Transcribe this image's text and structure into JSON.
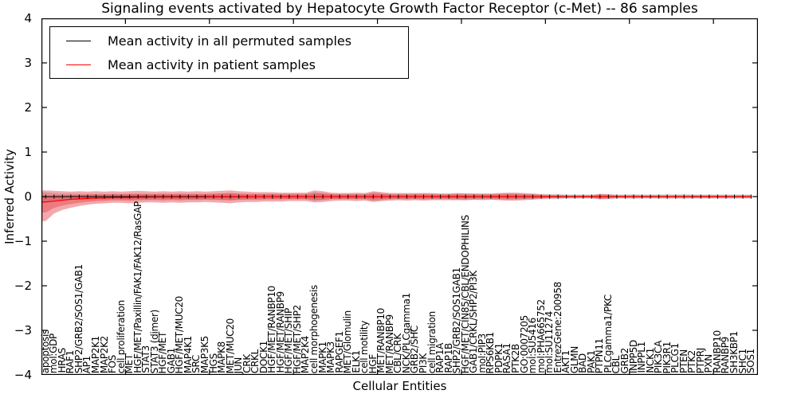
{
  "title": "Signaling events activated by Hepatocyte Growth Factor Receptor (c-Met) -- 86 samples",
  "axes": {
    "ylabel": "Inferred Activity",
    "xlabel": "Cellular Entities",
    "y_ticks": [
      {
        "value": 4,
        "label": "4"
      },
      {
        "value": 3,
        "label": "3"
      },
      {
        "value": 2,
        "label": "2"
      },
      {
        "value": 1,
        "label": "1"
      },
      {
        "value": 0,
        "label": "0"
      },
      {
        "value": -1,
        "label": "−1"
      },
      {
        "value": -2,
        "label": "−2"
      },
      {
        "value": -3,
        "label": "−3"
      },
      {
        "value": -4,
        "label": "−4"
      }
    ]
  },
  "legend": {
    "items": [
      {
        "label": "Mean activity in all permuted samples",
        "color": "#000000"
      },
      {
        "label": "Mean activity in patient samples",
        "color": "#ff0000"
      }
    ]
  },
  "colors": {
    "permuted_line": "#000000",
    "patient_line": "#ff0000",
    "patient_band": "#e02830",
    "permuted_band": "#000000",
    "background": "#ffffff"
  },
  "chart_data": {
    "type": "line",
    "title": "Signaling events activated by Hepatocyte Growth Factor Receptor (c-Met) -- 86 samples",
    "xlabel": "Cellular Entities",
    "ylabel": "Inferred Activity",
    "xlim": [
      0,
      85.3
    ],
    "ylim": [
      -4,
      4
    ],
    "grid": false,
    "legend_position": "upper left",
    "x_major_ticks": [
      10,
      20,
      30,
      40,
      50,
      60,
      70,
      80
    ],
    "n_entities": 85,
    "categories": [
      "apoptosis",
      "mol:GDP",
      "HRAS",
      "RAF1",
      "SHP2/GRB2/SOS1/GAB1",
      "AP1",
      "MAP2K1",
      "MAP2K2",
      "FOS",
      "cell proliferation",
      "MET",
      "HGF/MET/Paxillin/FAK1/FAK12/RasGAP",
      "STAT3",
      "STAT3 (dimer)",
      "HGF/MET",
      "GAB1",
      "HGF/MET/MUC20",
      "MAP4K1",
      "SRC",
      "MAP3K5",
      "HGS",
      "MAPK8",
      "MET/MUC20",
      "JUN",
      "CRK",
      "CRKL",
      "DOCK1",
      "HGF/MET/RANBP10",
      "HGF/MET/RANBP9",
      "HGF/MET/SHIP",
      "HGF/MET/SHP2",
      "MAP2K4",
      "cell morphogenesis",
      "MAPK1",
      "MAPK3",
      "RAPGEF1",
      "MET/Glomulin",
      "ELK1",
      "cell motility",
      "HGF",
      "MET/RANBP10",
      "MET/RANBP9",
      "CBL/CRK",
      "NCK/PLCgamma1",
      "GRB2/SHC",
      "PI3K",
      "cell migration",
      "RAP1A",
      "RAP1B",
      "SHP2/GRB2/SOS1GAB1",
      "HGF/MET/CIN85/CBL/ENDOPHILINS",
      "GAB1/CRKL/SHP2/PI3K",
      "mol:PIP3",
      "RPS6KB1",
      "PDPK1",
      "RASA1",
      "PTK2B",
      "GO:0007205",
      "mol:SU5416",
      "mol:PHA665752",
      "mol:SU11274",
      "EntrezGene:200958",
      "AKT1",
      "GLMN",
      "BAD",
      "PAK1",
      "PTPN11",
      "PLCgamma1/PKC",
      "CBL",
      "GRB2",
      "INPP5D",
      "INPPL1",
      "NCK1",
      "PIK3CA",
      "PIK3R1",
      "PLCG1",
      "PTEN",
      "PTK2",
      "PTPRJ",
      "PXN",
      "RANBP10",
      "RANBP9",
      "SH3KBP1",
      "SHC1",
      "SOS1"
    ],
    "series": [
      {
        "name": "Mean activity in all permuted samples",
        "color": "#000000",
        "marker": "|",
        "values": [
          0,
          0,
          0,
          0,
          0,
          0,
          0,
          0,
          0,
          0,
          0,
          0,
          0,
          0,
          0,
          0,
          0,
          0,
          0,
          0,
          0,
          0,
          0,
          0,
          0,
          0,
          0,
          0,
          0,
          0,
          0,
          0,
          0,
          0,
          0,
          0,
          0,
          0,
          0,
          0,
          0,
          0,
          0,
          0,
          0,
          0,
          0,
          0,
          0,
          0,
          0,
          0,
          0,
          0,
          0,
          0,
          0,
          0,
          0,
          0,
          0,
          0,
          0,
          0,
          0,
          0,
          0,
          0,
          0,
          0,
          0,
          0,
          0,
          0,
          0,
          0,
          0,
          0,
          0,
          0,
          0,
          0,
          0,
          0,
          0
        ]
      },
      {
        "name": "Mean activity in patient samples",
        "color": "#ff0000",
        "marker": "none",
        "values": [
          -0.12,
          -0.1,
          -0.08,
          -0.06,
          -0.05,
          -0.04,
          -0.03,
          -0.03,
          -0.02,
          -0.02,
          -0.02,
          -0.015,
          -0.015,
          -0.01,
          -0.01,
          -0.01,
          -0.01,
          -0.01,
          -0.01,
          -0.01,
          -0.005,
          -0.005,
          -0.005,
          -0.005,
          -0.005,
          0,
          0,
          0,
          0,
          0,
          0,
          0,
          -0.005,
          0,
          0,
          0,
          0,
          0,
          0,
          -0.005,
          0,
          0,
          0,
          0,
          0,
          0,
          0,
          0,
          0,
          0,
          -0.005,
          0,
          0,
          0,
          0,
          0,
          0,
          0,
          0,
          0,
          0,
          0,
          0,
          0,
          0,
          0,
          0,
          0,
          0,
          0,
          0,
          0,
          0,
          0,
          0,
          0,
          0,
          0,
          0,
          0,
          0,
          0,
          0,
          0,
          0
        ]
      }
    ],
    "bands": [
      {
        "name": "permuted-samples-range",
        "color": "#000000",
        "opacity": 0.14,
        "symmetric_halfwidth": [
          0.1,
          0.08,
          0.07,
          0.07,
          0.06,
          0.06,
          0.06,
          0.06,
          0.06,
          0.06,
          0.07,
          0.06,
          0.06,
          0.06,
          0.06,
          0.06,
          0.06,
          0.06,
          0.06,
          0.06,
          0.06,
          0.07,
          0.08,
          0.06,
          0.06,
          0.06,
          0.06,
          0.06,
          0.06,
          0.06,
          0.06,
          0.06,
          0.1,
          0.08,
          0.06,
          0.06,
          0.06,
          0.06,
          0.06,
          0.1,
          0.08,
          0.06,
          0.06,
          0.06,
          0.06,
          0.07,
          0.06,
          0.06,
          0.06,
          0.07,
          0.08,
          0.07,
          0.06,
          0.06,
          0.07,
          0.07,
          0.07,
          0.06,
          0.06,
          0.06,
          0.06,
          0.06,
          0.05,
          0.05,
          0.05,
          0.05,
          0.06,
          0.06,
          0.05,
          0.05,
          0.06,
          0.05,
          0.05,
          0.05,
          0.06,
          0.05,
          0.06,
          0.05,
          0.05,
          0.05,
          0.05,
          0.05,
          0.05,
          0.05,
          0.05
        ]
      },
      {
        "name": "patient-samples-range-outer",
        "color": "#e02830",
        "opacity": 0.4,
        "upper": [
          0.14,
          0.13,
          0.12,
          0.11,
          0.12,
          0.11,
          0.12,
          0.11,
          0.12,
          0.11,
          0.12,
          0.13,
          0.12,
          0.11,
          0.12,
          0.11,
          0.12,
          0.11,
          0.12,
          0.11,
          0.12,
          0.13,
          0.14,
          0.12,
          0.11,
          0.1,
          0.1,
          0.1,
          0.09,
          0.09,
          0.09,
          0.09,
          0.14,
          0.12,
          0.09,
          0.08,
          0.08,
          0.09,
          0.08,
          0.12,
          0.1,
          0.08,
          0.08,
          0.08,
          0.08,
          0.08,
          0.08,
          0.07,
          0.07,
          0.08,
          0.07,
          0.07,
          0.07,
          0.07,
          0.08,
          0.09,
          0.09,
          0.08,
          0.07,
          0.05,
          0.04,
          0.04,
          0.03,
          0.03,
          0.03,
          0.03,
          0.06,
          0.05,
          0.03,
          0.03,
          0.03,
          0.03,
          0.03,
          0.03,
          0.03,
          0.03,
          0.03,
          0.03,
          0.03,
          0.03,
          0.03,
          0.03,
          0.03,
          0.03,
          0.03
        ],
        "lower": [
          -0.55,
          -0.38,
          -0.3,
          -0.25,
          -0.21,
          -0.18,
          -0.16,
          -0.15,
          -0.14,
          -0.14,
          -0.15,
          -0.14,
          -0.13,
          -0.13,
          -0.14,
          -0.13,
          -0.14,
          -0.13,
          -0.13,
          -0.12,
          -0.13,
          -0.14,
          -0.15,
          -0.13,
          -0.12,
          -0.12,
          -0.11,
          -0.11,
          -0.11,
          -0.1,
          -0.1,
          -0.1,
          -0.13,
          -0.12,
          -0.1,
          -0.09,
          -0.09,
          -0.1,
          -0.09,
          -0.12,
          -0.1,
          -0.09,
          -0.08,
          -0.09,
          -0.08,
          -0.09,
          -0.08,
          -0.08,
          -0.08,
          -0.08,
          -0.08,
          -0.07,
          -0.08,
          -0.07,
          -0.08,
          -0.09,
          -0.09,
          -0.08,
          -0.07,
          -0.05,
          -0.04,
          -0.04,
          -0.03,
          -0.03,
          -0.03,
          -0.03,
          -0.06,
          -0.05,
          -0.03,
          -0.03,
          -0.03,
          -0.03,
          -0.03,
          -0.03,
          -0.03,
          -0.03,
          -0.03,
          -0.03,
          -0.03,
          -0.03,
          -0.03,
          -0.03,
          -0.03,
          -0.03,
          -0.03
        ]
      },
      {
        "name": "patient-samples-range-inner",
        "color": "#e02830",
        "opacity": 0.35,
        "inner_fraction_of_outer": 0.55
      }
    ]
  }
}
